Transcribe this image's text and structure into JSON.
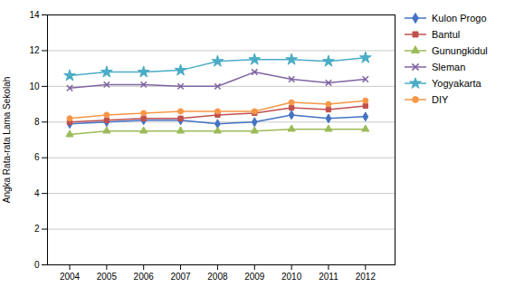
{
  "chart_data": {
    "type": "line",
    "ylabel": "Angka Rata-rata Lama Sekolah",
    "x": [
      2004,
      2005,
      2006,
      2007,
      2008,
      2009,
      2010,
      2011,
      2012
    ],
    "xlim": [
      2003.4,
      2012.8
    ],
    "xticks": [
      2004,
      2005,
      2006,
      2007,
      2008,
      2009,
      2010,
      2011,
      2012
    ],
    "ylim": [
      0,
      14
    ],
    "yticks": [
      0,
      2,
      4,
      6,
      8,
      10,
      12,
      14
    ],
    "grid": "y",
    "legend": "right",
    "series": [
      {
        "name": "Kulon Progo",
        "color": "#4472C4",
        "marker": "diamond",
        "line_style": "solid",
        "values": [
          7.9,
          8.0,
          8.1,
          8.1,
          7.9,
          8.0,
          8.4,
          8.2,
          8.3
        ]
      },
      {
        "name": "Bantul",
        "color": "#C0504D",
        "marker": "square",
        "line_style": "solid",
        "values": [
          8.0,
          8.1,
          8.2,
          8.2,
          8.4,
          8.5,
          8.8,
          8.7,
          8.9
        ]
      },
      {
        "name": "Gunungkidul",
        "color": "#9BBB59",
        "marker": "triangle",
        "line_style": "solid",
        "values": [
          7.3,
          7.5,
          7.5,
          7.5,
          7.5,
          7.5,
          7.6,
          7.6,
          7.6
        ]
      },
      {
        "name": "Sleman",
        "color": "#8064A2",
        "marker": "x",
        "line_style": "solid",
        "values": [
          9.9,
          10.1,
          10.1,
          10.0,
          10.0,
          10.8,
          10.4,
          10.2,
          10.4
        ]
      },
      {
        "name": "Yogyakarta",
        "color": "#4BACC6",
        "marker": "star",
        "line_style": "solid",
        "values": [
          10.6,
          10.8,
          10.8,
          10.9,
          11.4,
          11.5,
          11.5,
          11.4,
          11.6
        ]
      },
      {
        "name": "DIY",
        "color": "#F79646",
        "marker": "circle",
        "line_style": "solid",
        "values": [
          8.2,
          8.4,
          8.5,
          8.6,
          8.6,
          8.6,
          9.1,
          9.0,
          9.2
        ]
      }
    ]
  }
}
